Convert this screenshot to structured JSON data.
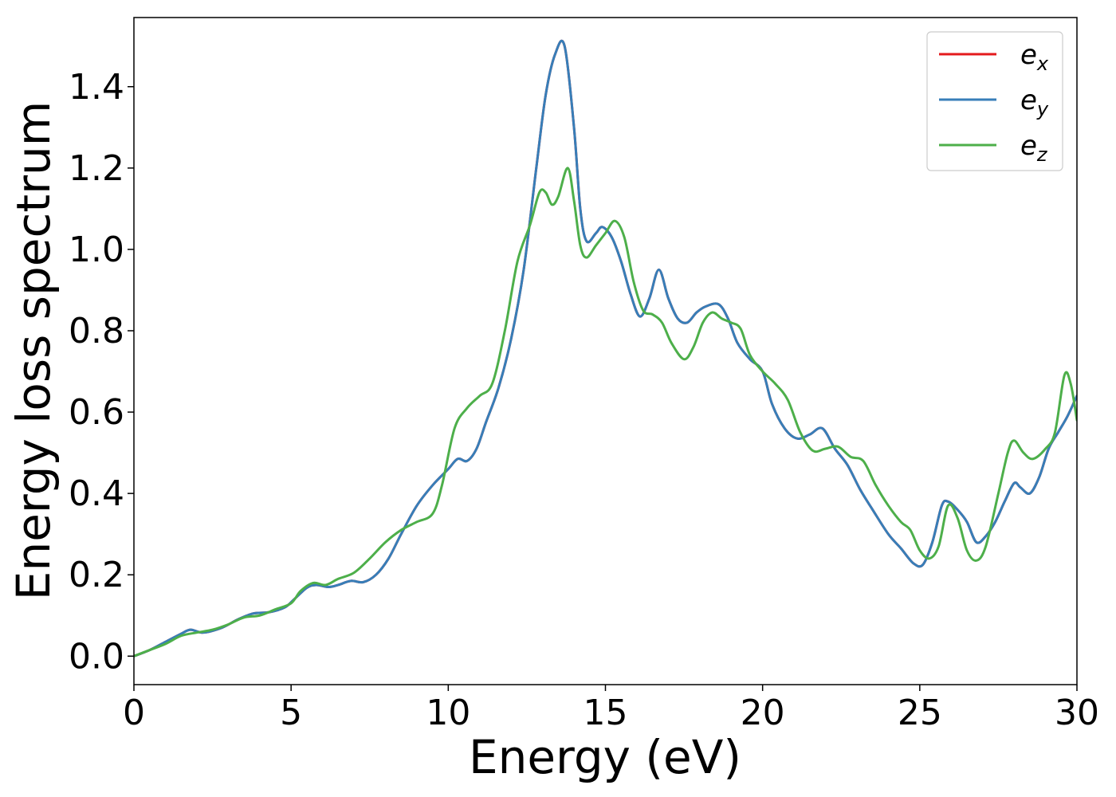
{
  "chart_data": {
    "type": "line",
    "title": "",
    "xlabel": "Energy (eV)",
    "ylabel": "Energy loss spectrum",
    "xlim": [
      0,
      30
    ],
    "ylim": [
      -0.07,
      1.57
    ],
    "xticks": [
      0,
      5,
      10,
      15,
      20,
      25,
      30
    ],
    "xtick_labels": [
      "0",
      "5",
      "10",
      "15",
      "20",
      "25",
      "30"
    ],
    "yticks": [
      0.0,
      0.2,
      0.4,
      0.6,
      0.8,
      1.0,
      1.2,
      1.4
    ],
    "ytick_labels": [
      "0.0",
      "0.2",
      "0.4",
      "0.6",
      "0.8",
      "1.0",
      "1.2",
      "1.4"
    ],
    "grid": false,
    "legend_position": "top-right",
    "series": [
      {
        "name": "e_x",
        "label_main": "e",
        "label_sub": "x",
        "color": "#e41a1c",
        "x": [
          0,
          0.5,
          1,
          1.5,
          1.8,
          2.2,
          2.8,
          3.3,
          3.8,
          4.3,
          4.8,
          5.1,
          5.5,
          5.8,
          6.2,
          6.5,
          6.9,
          7.3,
          7.7,
          8.1,
          8.5,
          9,
          9.5,
          10,
          10.3,
          10.6,
          10.9,
          11.2,
          11.6,
          12,
          12.4,
          12.8,
          13.1,
          13.4,
          13.7,
          14,
          14.2,
          14.4,
          14.7,
          14.9,
          15.2,
          15.5,
          15.8,
          16.1,
          16.4,
          16.7,
          17,
          17.3,
          17.6,
          17.9,
          18.2,
          18.6,
          18.9,
          19.2,
          19.6,
          20,
          20.3,
          20.7,
          21.1,
          21.5,
          21.9,
          22.3,
          22.7,
          23.1,
          23.5,
          24,
          24.4,
          24.8,
          25.1,
          25.4,
          25.7,
          25.9,
          26.2,
          26.5,
          26.8,
          27.1,
          27.4,
          27.7,
          28,
          28.2,
          28.5,
          28.8,
          29.1,
          29.4,
          29.7,
          30
        ],
        "y": [
          0.0,
          0.015,
          0.035,
          0.055,
          0.065,
          0.058,
          0.07,
          0.09,
          0.105,
          0.108,
          0.12,
          0.14,
          0.168,
          0.175,
          0.17,
          0.175,
          0.185,
          0.182,
          0.2,
          0.24,
          0.3,
          0.37,
          0.42,
          0.46,
          0.485,
          0.48,
          0.51,
          0.575,
          0.66,
          0.78,
          0.95,
          1.2,
          1.38,
          1.48,
          1.5,
          1.3,
          1.1,
          1.02,
          1.04,
          1.055,
          1.03,
          0.97,
          0.89,
          0.835,
          0.88,
          0.95,
          0.88,
          0.83,
          0.82,
          0.845,
          0.86,
          0.865,
          0.83,
          0.77,
          0.73,
          0.7,
          0.62,
          0.56,
          0.535,
          0.545,
          0.56,
          0.51,
          0.47,
          0.41,
          0.36,
          0.3,
          0.265,
          0.228,
          0.225,
          0.28,
          0.37,
          0.38,
          0.36,
          0.33,
          0.28,
          0.295,
          0.33,
          0.38,
          0.425,
          0.415,
          0.4,
          0.44,
          0.51,
          0.55,
          0.59,
          0.64
        ]
      },
      {
        "name": "e_y",
        "label_main": "e",
        "label_sub": "y",
        "color": "#377eb8",
        "x": [
          0,
          0.5,
          1,
          1.5,
          1.8,
          2.2,
          2.8,
          3.3,
          3.8,
          4.3,
          4.8,
          5.1,
          5.5,
          5.8,
          6.2,
          6.5,
          6.9,
          7.3,
          7.7,
          8.1,
          8.5,
          9,
          9.5,
          10,
          10.3,
          10.6,
          10.9,
          11.2,
          11.6,
          12,
          12.4,
          12.8,
          13.1,
          13.4,
          13.7,
          14,
          14.2,
          14.4,
          14.7,
          14.9,
          15.2,
          15.5,
          15.8,
          16.1,
          16.4,
          16.7,
          17,
          17.3,
          17.6,
          17.9,
          18.2,
          18.6,
          18.9,
          19.2,
          19.6,
          20,
          20.3,
          20.7,
          21.1,
          21.5,
          21.9,
          22.3,
          22.7,
          23.1,
          23.5,
          24,
          24.4,
          24.8,
          25.1,
          25.4,
          25.7,
          25.9,
          26.2,
          26.5,
          26.8,
          27.1,
          27.4,
          27.7,
          28,
          28.2,
          28.5,
          28.8,
          29.1,
          29.4,
          29.7,
          30
        ],
        "y": [
          0.0,
          0.015,
          0.035,
          0.055,
          0.065,
          0.058,
          0.07,
          0.09,
          0.105,
          0.108,
          0.12,
          0.14,
          0.168,
          0.175,
          0.17,
          0.175,
          0.185,
          0.182,
          0.2,
          0.24,
          0.3,
          0.37,
          0.42,
          0.46,
          0.485,
          0.48,
          0.51,
          0.575,
          0.66,
          0.78,
          0.95,
          1.2,
          1.38,
          1.48,
          1.5,
          1.3,
          1.1,
          1.02,
          1.04,
          1.055,
          1.03,
          0.97,
          0.89,
          0.835,
          0.88,
          0.95,
          0.88,
          0.83,
          0.82,
          0.845,
          0.86,
          0.865,
          0.83,
          0.77,
          0.73,
          0.7,
          0.62,
          0.56,
          0.535,
          0.545,
          0.56,
          0.51,
          0.47,
          0.41,
          0.36,
          0.3,
          0.265,
          0.228,
          0.225,
          0.28,
          0.37,
          0.38,
          0.36,
          0.33,
          0.28,
          0.295,
          0.33,
          0.38,
          0.425,
          0.415,
          0.4,
          0.44,
          0.51,
          0.55,
          0.59,
          0.64
        ]
      },
      {
        "name": "e_z",
        "label_main": "e",
        "label_sub": "z",
        "color": "#4daf4a",
        "x": [
          0,
          0.5,
          1,
          1.5,
          2,
          2.5,
          3,
          3.5,
          4,
          4.5,
          5,
          5.3,
          5.7,
          6.1,
          6.5,
          7,
          7.5,
          8,
          8.5,
          9,
          9.5,
          9.8,
          10.2,
          10.6,
          11,
          11.4,
          11.8,
          12.2,
          12.6,
          12.9,
          13.1,
          13.3,
          13.5,
          13.8,
          14,
          14.2,
          14.4,
          14.7,
          15,
          15.3,
          15.6,
          15.9,
          16.2,
          16.5,
          16.8,
          17.1,
          17.5,
          17.8,
          18.1,
          18.4,
          18.7,
          19,
          19.3,
          19.6,
          20,
          20.4,
          20.8,
          21.2,
          21.6,
          22,
          22.4,
          22.8,
          23.2,
          23.6,
          24,
          24.4,
          24.7,
          25,
          25.3,
          25.6,
          25.9,
          26.2,
          26.5,
          26.8,
          27.1,
          27.5,
          27.8,
          28,
          28.3,
          28.6,
          29,
          29.3,
          29.6,
          29.8,
          30
        ],
        "y": [
          0.0,
          0.015,
          0.03,
          0.05,
          0.058,
          0.065,
          0.078,
          0.095,
          0.1,
          0.115,
          0.13,
          0.16,
          0.18,
          0.175,
          0.19,
          0.205,
          0.24,
          0.28,
          0.31,
          0.33,
          0.35,
          0.42,
          0.56,
          0.61,
          0.64,
          0.67,
          0.8,
          0.97,
          1.06,
          1.14,
          1.14,
          1.11,
          1.13,
          1.2,
          1.12,
          1.01,
          0.98,
          1.01,
          1.04,
          1.07,
          1.03,
          0.92,
          0.85,
          0.84,
          0.82,
          0.77,
          0.73,
          0.76,
          0.82,
          0.845,
          0.83,
          0.82,
          0.805,
          0.74,
          0.7,
          0.67,
          0.63,
          0.55,
          0.505,
          0.51,
          0.515,
          0.49,
          0.48,
          0.42,
          0.37,
          0.33,
          0.31,
          0.26,
          0.24,
          0.27,
          0.37,
          0.34,
          0.26,
          0.235,
          0.27,
          0.4,
          0.5,
          0.53,
          0.5,
          0.485,
          0.51,
          0.55,
          0.69,
          0.67,
          0.58
        ]
      }
    ]
  }
}
